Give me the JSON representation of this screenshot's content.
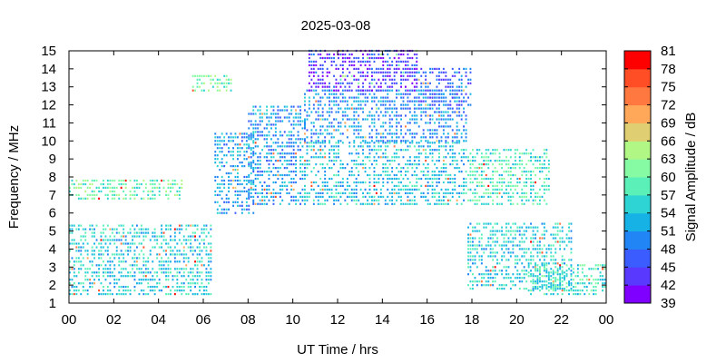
{
  "chart_data": {
    "type": "heatmap",
    "title": "2025-03-08",
    "xlabel": "UT Time / hrs",
    "ylabel": "Frequency / MHz",
    "colorbar_label": "Signal Amplitude / dB",
    "x_ticks": [
      "00",
      "02",
      "04",
      "06",
      "08",
      "10",
      "12",
      "14",
      "16",
      "18",
      "20",
      "22",
      "00"
    ],
    "y_ticks": [
      "1",
      "2",
      "3",
      "4",
      "5",
      "6",
      "7",
      "8",
      "9",
      "10",
      "11",
      "12",
      "13",
      "14",
      "15"
    ],
    "xlim": [
      0,
      24
    ],
    "ylim": [
      1,
      15
    ],
    "colorbar_ticks": [
      "39",
      "42",
      "45",
      "48",
      "51",
      "54",
      "57",
      "60",
      "63",
      "66",
      "69",
      "72",
      "75",
      "78",
      "81"
    ],
    "colorbar_range": [
      39,
      81
    ],
    "colorbar_colors": [
      "#8000ff",
      "#5a39ff",
      "#3b5cff",
      "#2185f5",
      "#16b2e6",
      "#2ed3d3",
      "#5bf0b8",
      "#86fba3",
      "#b1f785",
      "#e0cf72",
      "#ffa85a",
      "#ff7840",
      "#ff4e26",
      "#ff0000"
    ],
    "regions": [
      {
        "t_start": 0.0,
        "t_end": 6.3,
        "f_start": 1.5,
        "f_end": 5.4,
        "amp": 55
      },
      {
        "t_start": 0.0,
        "t_end": 5.0,
        "f_start": 6.8,
        "f_end": 8.0,
        "amp": 60
      },
      {
        "t_start": 5.5,
        "t_end": 7.2,
        "f_start": 12.8,
        "f_end": 13.6,
        "amp": 60
      },
      {
        "t_start": 6.5,
        "t_end": 8.2,
        "f_start": 6.0,
        "f_end": 10.5,
        "amp": 52
      },
      {
        "t_start": 8.0,
        "t_end": 10.5,
        "f_start": 6.5,
        "f_end": 12.0,
        "amp": 51
      },
      {
        "t_start": 10.5,
        "t_end": 17.8,
        "f_start": 6.5,
        "f_end": 10.0,
        "amp": 54
      },
      {
        "t_start": 10.5,
        "t_end": 17.8,
        "f_start": 10.0,
        "f_end": 12.8,
        "amp": 50
      },
      {
        "t_start": 10.7,
        "t_end": 15.5,
        "f_start": 12.8,
        "f_end": 15.0,
        "amp": 44
      },
      {
        "t_start": 15.5,
        "t_end": 18.0,
        "f_start": 12.0,
        "f_end": 14.0,
        "amp": 47
      },
      {
        "t_start": 17.8,
        "t_end": 21.5,
        "f_start": 6.5,
        "f_end": 9.5,
        "amp": 58
      },
      {
        "t_start": 17.8,
        "t_end": 22.5,
        "f_start": 1.8,
        "f_end": 5.5,
        "amp": 55
      },
      {
        "t_start": 20.5,
        "t_end": 24.0,
        "f_start": 1.5,
        "f_end": 3.2,
        "amp": 57
      }
    ]
  }
}
